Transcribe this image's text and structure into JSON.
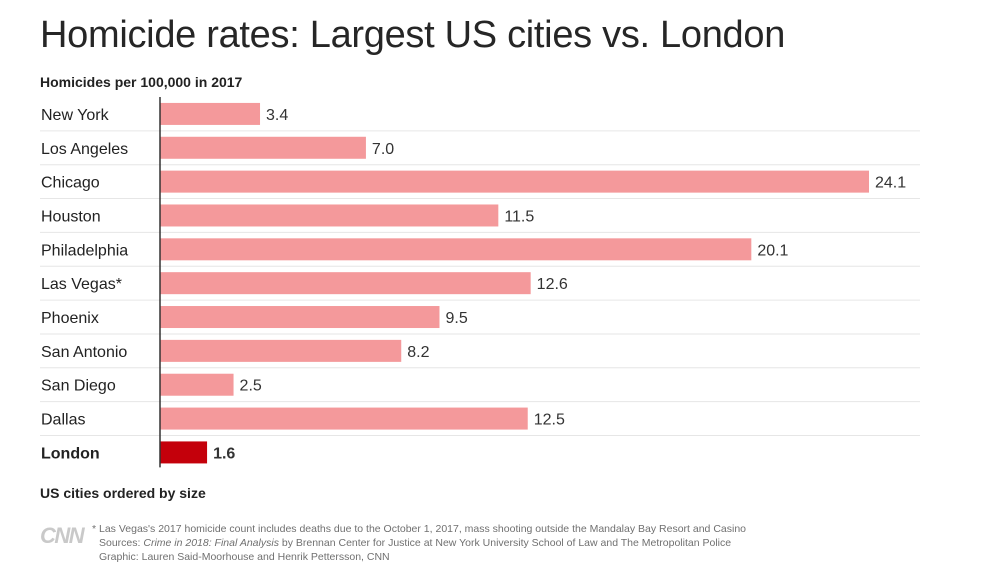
{
  "header": {
    "title": "Homicide rates: Largest US cities vs. London",
    "subtitle": "Homicides per 100,000 in 2017"
  },
  "note": "US cities ordered by size",
  "footer": {
    "logo": "CNN",
    "line1": "* Las Vegas's 2017 homicide count includes deaths due to the October 1, 2017, mass shooting outside the Mandalay Bay Resort and Casino",
    "sources_prefix": "Sources: ",
    "sources_title": "Crime in 2018: Final Analysis",
    "sources_rest": " by Brennan Center for Justice at New York University School of Law and The Metropolitan Police",
    "graphic": "Graphic: Lauren Said-Moorhouse and Henrik Pettersson, CNN"
  },
  "colors": {
    "us_bar": "#f4999b",
    "london_bar": "#c4000b",
    "gridline": "#e6e6e6",
    "axis": "#333333"
  },
  "chart_data": {
    "type": "bar",
    "orientation": "horizontal",
    "title": "Homicide rates: Largest US cities vs. London",
    "subtitle": "Homicides per 100,000 in 2017",
    "xlabel": "",
    "ylabel": "",
    "xlim": [
      0,
      24.1
    ],
    "grid": true,
    "categories": [
      "New York",
      "Los Angeles",
      "Chicago",
      "Houston",
      "Philadelphia",
      "Las Vegas*",
      "Phoenix",
      "San Antonio",
      "San Diego",
      "Dallas",
      "London"
    ],
    "values": [
      3.4,
      7.0,
      24.1,
      11.5,
      20.1,
      12.6,
      9.5,
      8.2,
      2.5,
      12.5,
      1.6
    ],
    "labels": [
      "3.4",
      "7.0",
      "24.1",
      "11.5",
      "20.1",
      "12.6",
      "9.5",
      "8.2",
      "2.5",
      "12.5",
      "1.6"
    ],
    "highlight": [
      "London"
    ]
  }
}
